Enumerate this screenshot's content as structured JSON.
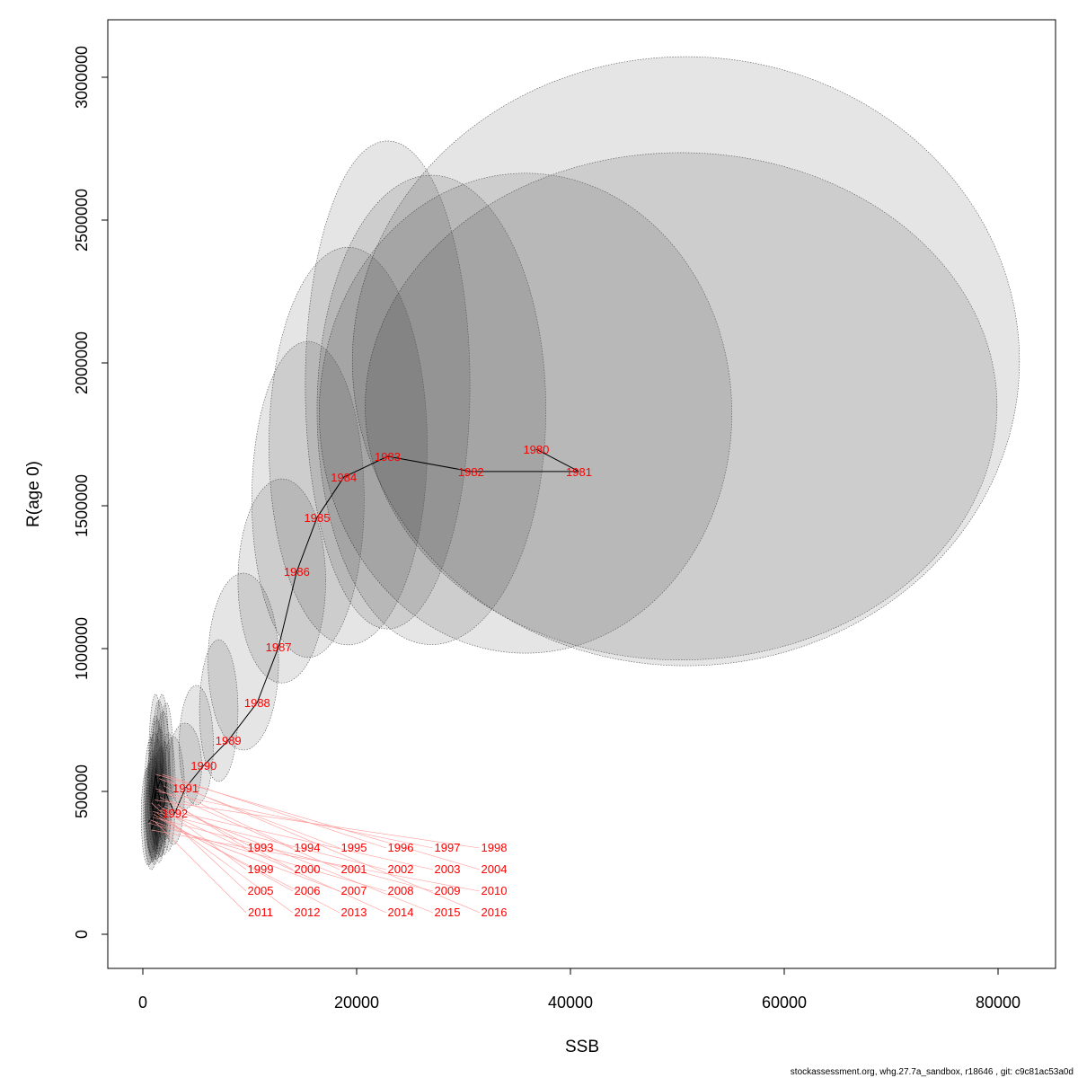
{
  "chart_data": {
    "type": "scatter",
    "xlabel": "SSB",
    "ylabel": "R(age 0)",
    "xlim": [
      -1600,
      85000
    ],
    "ylim": [
      -120000,
      3200000
    ],
    "xticks": [
      0,
      20000,
      40000,
      60000,
      80000
    ],
    "yticks": [
      0,
      500000,
      1000000,
      1500000,
      2000000,
      2500000,
      3000000
    ],
    "grid": false,
    "point_label_color": "#ff0000",
    "line_color": "#000000",
    "ellipse_fill": "#000000",
    "footer": "stockassessment.org, whg.27.7a_sandbox, r18646 , git: c9c81ac53a0d",
    "points": [
      {
        "year": "1980",
        "ssb": 36800,
        "r": 1698000,
        "ssb_range": [
          19600,
          82000
        ],
        "r_range": [
          940000,
          3072000
        ]
      },
      {
        "year": "1981",
        "ssb": 40800,
        "r": 1620000,
        "ssb_range": [
          20800,
          79900
        ],
        "r_range": [
          960000,
          2736000
        ]
      },
      {
        "year": "1982",
        "ssb": 30700,
        "r": 1620000,
        "ssb_range": [
          16500,
          55100
        ],
        "r_range": [
          984000,
          2664000
        ]
      },
      {
        "year": "1983",
        "ssb": 22900,
        "r": 1673000,
        "ssb_range": [
          16300,
          37700
        ],
        "r_range": [
          1014000,
          2657000
        ]
      },
      {
        "year": "1984",
        "ssb": 18800,
        "r": 1600000,
        "ssb_range": [
          15200,
          30600
        ],
        "r_range": [
          1069000,
          2777000
        ]
      },
      {
        "year": "1985",
        "ssb": 16300,
        "r": 1459000,
        "ssb_range": [
          11800,
          26600
        ],
        "r_range": [
          1013000,
          2405000
        ]
      },
      {
        "year": "1986",
        "ssb": 14400,
        "r": 1270000,
        "ssb_range": [
          10200,
          20700
        ],
        "r_range": [
          969000,
          2075000
        ]
      },
      {
        "year": "1987",
        "ssb": 12700,
        "r": 1006000,
        "ssb_range": [
          8900,
          17100
        ],
        "r_range": [
          880000,
          1594000
        ]
      },
      {
        "year": "1988",
        "ssb": 10700,
        "r": 811000,
        "ssb_range": [
          6100,
          12700
        ],
        "r_range": [
          645000,
          1264000
        ]
      },
      {
        "year": "1989",
        "ssb": 8000,
        "r": 679000,
        "ssb_range": [
          5300,
          8900
        ],
        "r_range": [
          535000,
          1031000
        ]
      },
      {
        "year": "1990",
        "ssb": 5700,
        "r": 591000,
        "ssb_range": [
          3400,
          6600
        ],
        "r_range": [
          453000,
          871000
        ]
      },
      {
        "year": "1991",
        "ssb": 4000,
        "r": 513000,
        "ssb_range": [
          2400,
          5500
        ],
        "r_range": [
          440000,
          739000
        ]
      },
      {
        "year": "1992",
        "ssb": 3000,
        "r": 425000,
        "ssb_range": [
          1800,
          3900
        ],
        "r_range": [
          314000,
          692000
        ]
      },
      {
        "year": "1993",
        "ssb": 2400,
        "r": 470000
      },
      {
        "year": "1994",
        "ssb": 1900,
        "r": 520000
      },
      {
        "year": "1995",
        "ssb": 1500,
        "r": 545000
      },
      {
        "year": "1996",
        "ssb": 1800,
        "r": 560000
      },
      {
        "year": "1997",
        "ssb": 1300,
        "r": 500000
      },
      {
        "year": "1998",
        "ssb": 1100,
        "r": 470000
      },
      {
        "year": "1999",
        "ssb": 1400,
        "r": 455000
      },
      {
        "year": "2000",
        "ssb": 1600,
        "r": 480000
      },
      {
        "year": "2001",
        "ssb": 1200,
        "r": 510000
      },
      {
        "year": "2002",
        "ssb": 900,
        "r": 430000
      },
      {
        "year": "2003",
        "ssb": 1700,
        "r": 440000
      },
      {
        "year": "2004",
        "ssb": 1200,
        "r": 560000
      },
      {
        "year": "2005",
        "ssb": 800,
        "r": 460000
      },
      {
        "year": "2006",
        "ssb": 1000,
        "r": 420000
      },
      {
        "year": "2007",
        "ssb": 700,
        "r": 400000
      },
      {
        "year": "2008",
        "ssb": 500,
        "r": 390000
      },
      {
        "year": "2009",
        "ssb": 900,
        "r": 410000
      },
      {
        "year": "2010",
        "ssb": 800,
        "r": 365000
      },
      {
        "year": "2011",
        "ssb": 1100,
        "r": 395000
      },
      {
        "year": "2012",
        "ssb": 1300,
        "r": 425000
      },
      {
        "year": "2013",
        "ssb": 1500,
        "r": 405000
      },
      {
        "year": "2014",
        "ssb": 1600,
        "r": 435000
      },
      {
        "year": "2015",
        "ssb": 2000,
        "r": 450000
      },
      {
        "year": "2016",
        "ssb": 2200,
        "r": 540000
      }
    ]
  }
}
